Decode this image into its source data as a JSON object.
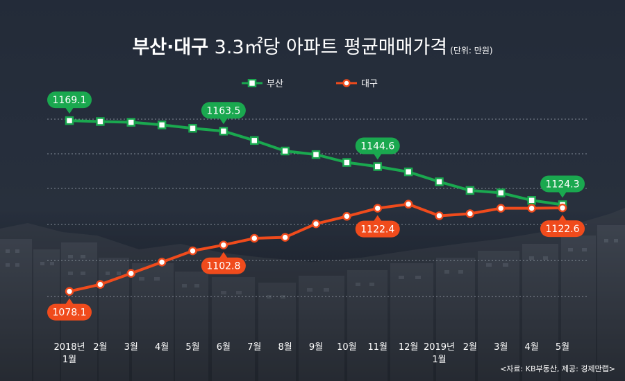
{
  "title": {
    "bold": "부산·대구",
    "rest": " 3.3㎡당 아파트 평균매매가격",
    "unit": "(단위: 만원)"
  },
  "colors": {
    "busan": "#1aa84f",
    "daegu": "#f04b1c",
    "background": "#252d3b"
  },
  "source": "<자료: KB부동산, 제공: 경제만랩>",
  "chart_data": {
    "type": "line",
    "title": "부산·대구 3.3㎡당 아파트 평균매매가격",
    "unit": "만원",
    "categories": [
      "2018년\n1월",
      "2월",
      "3월",
      "4월",
      "5월",
      "6월",
      "7월",
      "8월",
      "9월",
      "10월",
      "11월",
      "12월",
      "2019년\n1월",
      "2월",
      "3월",
      "4월",
      "5월"
    ],
    "series": [
      {
        "name": "부산",
        "values": [
          1169.1,
          1168.6,
          1168.2,
          1166.8,
          1165.0,
          1163.5,
          1158.5,
          1152.9,
          1151.0,
          1146.8,
          1144.6,
          1141.8,
          1136.5,
          1131.9,
          1130.6,
          1126.6,
          1124.3
        ]
      },
      {
        "name": "대구",
        "values": [
          1078.1,
          1081.8,
          1087.7,
          1093.7,
          1099.7,
          1102.8,
          1106.4,
          1106.9,
          1114.1,
          1118.1,
          1122.4,
          1124.6,
          1118.4,
          1119.5,
          1122.4,
          1122.4,
          1122.6
        ]
      }
    ],
    "annotations": [
      {
        "series": "부산",
        "index": 0,
        "label": "1169.1"
      },
      {
        "series": "부산",
        "index": 5,
        "label": "1163.5"
      },
      {
        "series": "부산",
        "index": 10,
        "label": "1144.6"
      },
      {
        "series": "부산",
        "index": 16,
        "label": "1124.3"
      },
      {
        "series": "대구",
        "index": 0,
        "label": "1078.1"
      },
      {
        "series": "대구",
        "index": 5,
        "label": "1102.8"
      },
      {
        "series": "대구",
        "index": 10,
        "label": "1122.4"
      },
      {
        "series": "대구",
        "index": 16,
        "label": "1122.6"
      }
    ],
    "ylim": [
      1068,
      1178
    ],
    "grid": true,
    "legend": "top-center"
  }
}
